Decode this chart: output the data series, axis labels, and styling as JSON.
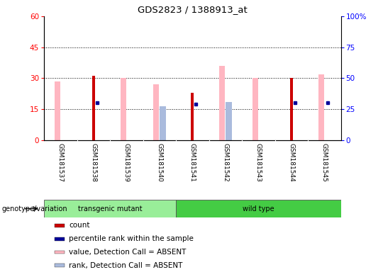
{
  "title": "GDS2823 / 1388913_at",
  "samples": [
    "GSM181537",
    "GSM181538",
    "GSM181539",
    "GSM181540",
    "GSM181541",
    "GSM181542",
    "GSM181543",
    "GSM181544",
    "GSM181545"
  ],
  "count_values": [
    0,
    31,
    0,
    0,
    23,
    0,
    0,
    30,
    0
  ],
  "percentile_rank_values": [
    0,
    30,
    0,
    0,
    29,
    0,
    0,
    30,
    30
  ],
  "absent_value_values": [
    28.5,
    0,
    30,
    27,
    0,
    36,
    30,
    0,
    32
  ],
  "absent_rank_values": [
    0,
    0,
    0,
    27.5,
    0,
    30.5,
    0,
    0,
    0
  ],
  "show_count": [
    false,
    true,
    false,
    false,
    true,
    false,
    false,
    true,
    false
  ],
  "show_percentile": [
    false,
    true,
    false,
    false,
    true,
    false,
    false,
    true,
    true
  ],
  "show_absent_value": [
    true,
    false,
    true,
    true,
    false,
    true,
    true,
    false,
    true
  ],
  "show_absent_rank": [
    false,
    false,
    false,
    true,
    false,
    true,
    false,
    false,
    false
  ],
  "ylim_left": [
    0,
    60
  ],
  "ylim_right": [
    0,
    100
  ],
  "yticks_left": [
    0,
    15,
    30,
    45,
    60
  ],
  "yticks_right": [
    0,
    25,
    50,
    75,
    100
  ],
  "ytick_labels_left": [
    "0",
    "15",
    "30",
    "45",
    "60"
  ],
  "ytick_labels_right": [
    "0",
    "25",
    "50",
    "75",
    "100%"
  ],
  "color_count": "#CC0000",
  "color_percentile": "#000099",
  "color_absent_value": "#FFB6C1",
  "color_absent_rank": "#AABBDD",
  "legend_items": [
    {
      "color": "#CC0000",
      "label": "count"
    },
    {
      "color": "#000099",
      "label": "percentile rank within the sample"
    },
    {
      "color": "#FFB6C1",
      "label": "value, Detection Call = ABSENT"
    },
    {
      "color": "#AABBDD",
      "label": "rank, Detection Call = ABSENT"
    }
  ],
  "genotype_label": "genotype/variation",
  "transgenic_indices": [
    0,
    1,
    2,
    3
  ],
  "wildtype_indices": [
    4,
    5,
    6,
    7,
    8
  ],
  "transgenic_color": "#99EE99",
  "wildtype_color": "#44CC44",
  "bg_color": "#DDDDDD"
}
